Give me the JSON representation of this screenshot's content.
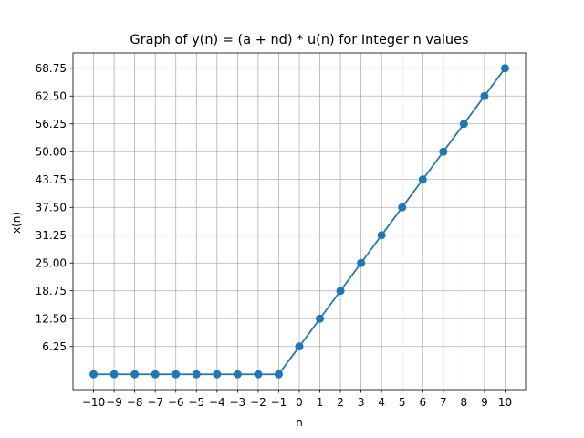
{
  "chart_data": {
    "type": "line",
    "title": "Graph of y(n) = (a + nd) * u(n) for Integer n values",
    "xlabel": "n",
    "ylabel": "x(n)",
    "x": [
      -10,
      -9,
      -8,
      -7,
      -6,
      -5,
      -4,
      -3,
      -2,
      -1,
      0,
      1,
      2,
      3,
      4,
      5,
      6,
      7,
      8,
      9,
      10
    ],
    "x_tick_labels": [
      "−10",
      "−9",
      "−8",
      "−7",
      "−6",
      "−5",
      "−4",
      "−3",
      "−2",
      "−1",
      "0",
      "1",
      "2",
      "3",
      "4",
      "5",
      "6",
      "7",
      "8",
      "9",
      "10"
    ],
    "series": [
      {
        "values": [
          0,
          0,
          0,
          0,
          0,
          0,
          0,
          0,
          0,
          0,
          6.25,
          12.5,
          18.75,
          25,
          31.25,
          37.5,
          43.75,
          50,
          56.25,
          62.5,
          68.75
        ],
        "color": "#1f77b4",
        "marker": "circle"
      }
    ],
    "y_ticks": [
      6.25,
      12.5,
      18.75,
      25,
      31.25,
      37.5,
      43.75,
      50,
      56.25,
      62.5,
      68.75
    ],
    "y_tick_labels": [
      "6.25",
      "12.50",
      "18.75",
      "25.00",
      "31.25",
      "37.50",
      "43.75",
      "50.00",
      "56.25",
      "62.50",
      "68.75"
    ],
    "xlim": [
      -11,
      11
    ],
    "ylim": [
      -3.4375,
      72.1875
    ],
    "grid": true
  }
}
